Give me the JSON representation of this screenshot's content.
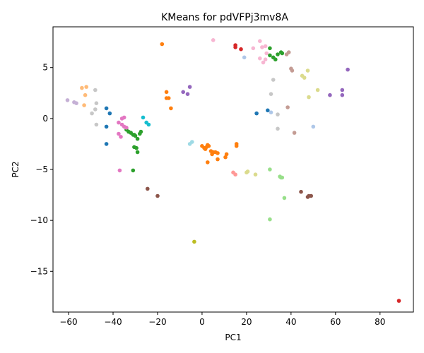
{
  "chart_data": {
    "type": "scatter",
    "title": "KMeans for pdVFPj3mv8A",
    "xlabel": "PC1",
    "ylabel": "PC2",
    "xlim": [
      -67,
      95
    ],
    "ylim": [
      -19,
      9
    ],
    "xticks": [
      -60,
      -40,
      -20,
      0,
      20,
      40,
      60,
      80
    ],
    "xtick_labels": [
      "−60",
      "−40",
      "−20",
      "0",
      "20",
      "40",
      "60",
      "80"
    ],
    "yticks": [
      -15,
      -10,
      -5,
      0,
      5
    ],
    "ytick_labels": [
      "−15",
      "−10",
      "−5",
      "0",
      "5"
    ],
    "grid": false,
    "legend": "none",
    "series": [
      {
        "color": "#1f77b4",
        "points": [
          [
            -43,
            1
          ],
          [
            -41.5,
            0.5
          ],
          [
            -43,
            -0.8
          ],
          [
            -43,
            -2.5
          ],
          [
            24.5,
            0.5
          ],
          [
            29.5,
            0.8
          ]
        ]
      },
      {
        "color": "#aec7e8",
        "points": [
          [
            19,
            6
          ],
          [
            50,
            -0.8
          ],
          [
            31,
            0.6
          ]
        ]
      },
      {
        "color": "#ff7f0e",
        "points": [
          [
            -18,
            7.3
          ],
          [
            -16,
            2.6
          ],
          [
            -16,
            2
          ],
          [
            -15,
            2
          ],
          [
            -14,
            1
          ],
          [
            0,
            -2.7
          ],
          [
            1,
            -2.9
          ],
          [
            2,
            -2.8
          ],
          [
            1.5,
            -3
          ],
          [
            2.5,
            -2.6
          ],
          [
            3,
            -2.7
          ],
          [
            4,
            -3.2
          ],
          [
            5,
            -3.3
          ],
          [
            4.5,
            -3.5
          ],
          [
            6,
            -3.3
          ],
          [
            7,
            -3.4
          ],
          [
            2.5,
            -4.3
          ],
          [
            7,
            -4
          ],
          [
            11,
            -3.5
          ],
          [
            10.5,
            -3.8
          ],
          [
            15.5,
            -2.5
          ],
          [
            15.5,
            -2.7
          ]
        ]
      },
      {
        "color": "#ffbb78",
        "points": [
          [
            -54,
            3
          ],
          [
            -52,
            3.1
          ],
          [
            -52.5,
            2.3
          ],
          [
            -53,
            1.3
          ]
        ]
      },
      {
        "color": "#2ca02c",
        "points": [
          [
            -34,
            -1.1
          ],
          [
            -33,
            -1.3
          ],
          [
            -32,
            -1.4
          ],
          [
            -31,
            -1.6
          ],
          [
            -30.5,
            -1.6
          ],
          [
            -30,
            -1.7
          ],
          [
            -29,
            -2
          ],
          [
            -30.5,
            -2.8
          ],
          [
            -29.5,
            -2.9
          ],
          [
            -29,
            -3.3
          ],
          [
            -31,
            -5.1
          ],
          [
            -27.5,
            -1.3
          ],
          [
            -28,
            -1.5
          ],
          [
            30.5,
            6.9
          ],
          [
            30.5,
            6.2
          ],
          [
            32,
            6
          ],
          [
            33,
            5.8
          ],
          [
            34,
            6.3
          ],
          [
            35.5,
            6.5
          ],
          [
            36,
            6.4
          ]
        ]
      },
      {
        "color": "#98df8a",
        "points": [
          [
            30.5,
            -5
          ],
          [
            35,
            -5.7
          ],
          [
            35.5,
            -5.8
          ],
          [
            36,
            -5.8
          ],
          [
            37,
            -7.8
          ],
          [
            30.5,
            -9.9
          ]
        ]
      },
      {
        "color": "#d62728",
        "points": [
          [
            15,
            7
          ],
          [
            15,
            7.2
          ],
          [
            17.5,
            6.8
          ],
          [
            88.5,
            -17.9
          ]
        ]
      },
      {
        "color": "#ff9896",
        "points": [
          [
            14,
            -5.3
          ],
          [
            15,
            -5.5
          ]
        ]
      },
      {
        "color": "#9467bd",
        "points": [
          [
            -8.5,
            2.6
          ],
          [
            -6.5,
            2.4
          ],
          [
            -5.5,
            3.1
          ],
          [
            57.5,
            2.3
          ],
          [
            63,
            2.3
          ],
          [
            63,
            2.8
          ],
          [
            65.5,
            4.8
          ]
        ]
      },
      {
        "color": "#c5b0d5",
        "points": [
          [
            -60.5,
            1.8
          ],
          [
            -57.5,
            1.6
          ],
          [
            -56.5,
            1.5
          ]
        ]
      },
      {
        "color": "#8c564b",
        "points": [
          [
            -24.5,
            -6.9
          ],
          [
            -20,
            -7.6
          ],
          [
            44.5,
            -7.2
          ],
          [
            47.5,
            -7.7
          ],
          [
            48,
            -7.6
          ],
          [
            49,
            -7.6
          ]
        ]
      },
      {
        "color": "#c49c94",
        "points": [
          [
            38,
            6.3
          ],
          [
            39,
            6.5
          ],
          [
            38.5,
            1.1
          ],
          [
            40,
            4.9
          ],
          [
            40.5,
            4.7
          ],
          [
            41.5,
            -1.4
          ]
        ]
      },
      {
        "color": "#e377c2",
        "points": [
          [
            -37.5,
            -0.4
          ],
          [
            -36,
            0
          ],
          [
            -35,
            0.1
          ],
          [
            -36,
            -0.6
          ],
          [
            -35,
            -0.8
          ],
          [
            -34,
            -0.9
          ],
          [
            -37.5,
            -1.5
          ],
          [
            -36.5,
            -1.8
          ],
          [
            -37,
            -5.1
          ]
        ]
      },
      {
        "color": "#f7b6d2",
        "points": [
          [
            5,
            7.7
          ],
          [
            23,
            6.9
          ],
          [
            26,
            7.6
          ],
          [
            27,
            7
          ],
          [
            28.5,
            7.1
          ],
          [
            29,
            6.4
          ],
          [
            26,
            5.9
          ],
          [
            27.5,
            5.5
          ],
          [
            28.5,
            5.8
          ]
        ]
      },
      {
        "color": "#7f7f7f",
        "points": []
      },
      {
        "color": "#c7c7c7",
        "points": [
          [
            -48,
            2.8
          ],
          [
            -47.5,
            1.5
          ],
          [
            -48,
            0.9
          ],
          [
            -49.5,
            0.5
          ],
          [
            -47.5,
            -0.6
          ],
          [
            32,
            3.8
          ],
          [
            31,
            2.4
          ],
          [
            34,
            0.4
          ],
          [
            34,
            -1
          ]
        ]
      },
      {
        "color": "#bcbd22",
        "points": [
          [
            -3.5,
            -12.1
          ]
        ]
      },
      {
        "color": "#dbdb8d",
        "points": [
          [
            20,
            -5.3
          ],
          [
            20.5,
            -5.2
          ],
          [
            24,
            -5.5
          ],
          [
            45,
            4.2
          ],
          [
            46,
            4
          ],
          [
            47.5,
            4.7
          ],
          [
            48,
            2.1
          ],
          [
            52,
            2.8
          ]
        ]
      },
      {
        "color": "#17becf",
        "points": [
          [
            -26.5,
            0.1
          ],
          [
            -25,
            -0.4
          ],
          [
            -24,
            -0.6
          ]
        ]
      },
      {
        "color": "#9edae5",
        "points": [
          [
            -5.5,
            -2.5
          ],
          [
            -4.5,
            -2.3
          ]
        ]
      }
    ]
  }
}
